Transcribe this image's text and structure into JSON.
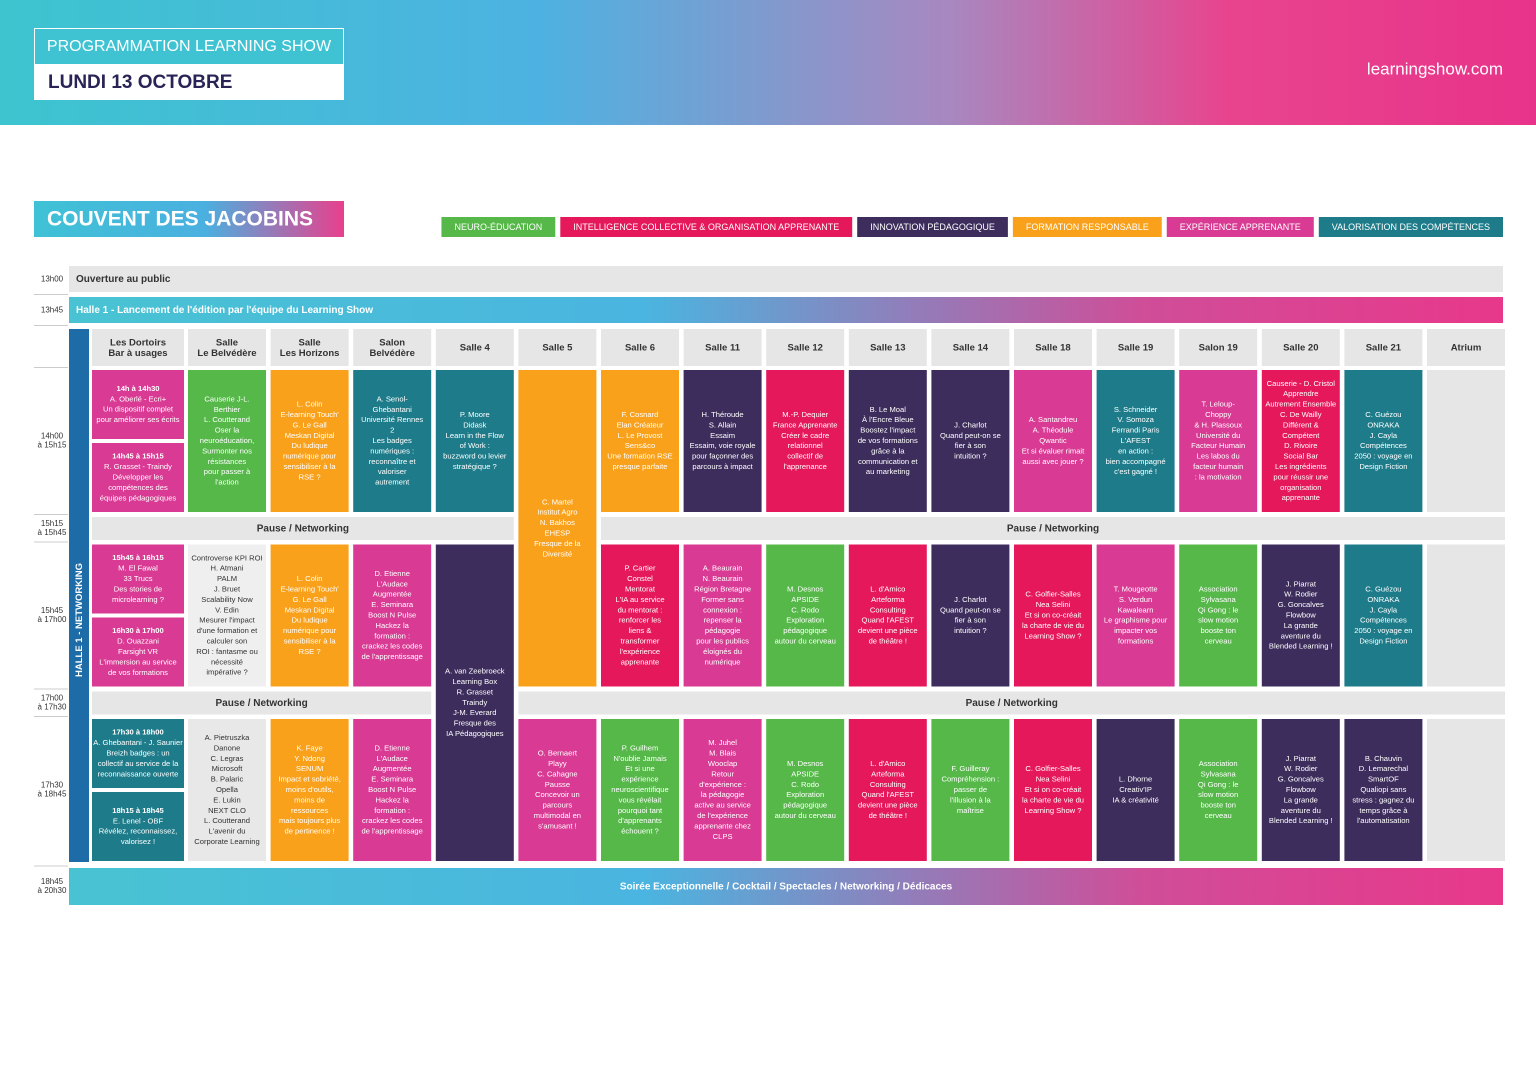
{
  "header": {
    "title": "PROGRAMMATION LEARNING SHOW",
    "date": "LUNDI 13 OCTOBRE",
    "site": "learningshow.com"
  },
  "venue": "COUVENT DES JACOBINS",
  "legend": [
    {
      "label": "NEURO-ÉDUCATION",
      "color": "#55b848"
    },
    {
      "label": "INTELLIGENCE COLLECTIVE & ORGANISATION APPRENANTE",
      "color": "#e5185b"
    },
    {
      "label": "INNOVATION PÉDAGOGIQUE",
      "color": "#3d2d5c"
    },
    {
      "label": "FORMATION RESPONSABLE",
      "color": "#f9a11b"
    },
    {
      "label": "EXPÉRIENCE APPRENANTE",
      "color": "#d93a93"
    },
    {
      "label": "VALORISATION DES COMPÉTENCES",
      "color": "#1e7c8a"
    }
  ],
  "opening": {
    "time": "13h00",
    "label": "Ouverture au public"
  },
  "launch": {
    "time": "13h45",
    "label": "Halle 1 - Lancement de l'édition par l'équipe du Learning Show"
  },
  "networking": "HALLE 1 - NETWORKING",
  "rooms": [
    [
      "Les Dortoirs",
      "Bar à usages"
    ],
    [
      "Salle",
      "Le Belvédère"
    ],
    [
      "Salle",
      "Les Horizons"
    ],
    [
      "Salon",
      "Belvédère"
    ],
    [
      "Salle 4"
    ],
    [
      "Salle 5"
    ],
    [
      "Salle 6"
    ],
    [
      "Salle 11"
    ],
    [
      "Salle 12"
    ],
    [
      "Salle 13"
    ],
    [
      "Salle 14"
    ],
    [
      "Salle 18"
    ],
    [
      "Salle 19"
    ],
    [
      "Salon 19"
    ],
    [
      "Salle 20"
    ],
    [
      "Salle 21"
    ],
    [
      "Atrium"
    ]
  ],
  "slots": [
    {
      "time": [
        "14h00",
        "à 15h15"
      ],
      "cells": [
        {
          "parts": [
            {
              "color": "#d93a93",
              "time": "14h à 14h30",
              "lines": [
                "A. Oberlé - Ecri+",
                "Un dispositif complet",
                "pour améliorer ses écrits"
              ]
            },
            {
              "color": "#d93a93",
              "time": "14h45 à 15h15",
              "lines": [
                "R. Grasset - Traindy",
                "Développer les",
                "compétences des",
                "équipes pédagogiques"
              ]
            }
          ]
        },
        {
          "color": "#55b848",
          "lines": [
            "Causerie J-L.",
            "Berthier",
            "L. Coutterand",
            "Oser la",
            "neuroéducation,",
            "Surmonter nos",
            "résistances",
            "pour passer à",
            "l'action"
          ]
        },
        {
          "color": "#f9a11b",
          "lines": [
            "L. Colin",
            "E-learning Touch'",
            "G. Le Gall",
            "Meskan Digital",
            "Du ludique",
            "numérique pour",
            "sensibiliser à la",
            "RSE ?"
          ]
        },
        {
          "color": "#1e7c8a",
          "lines": [
            "A. Senol-",
            "Ghebantani",
            "Université Rennes",
            "2",
            "Les badges",
            "numériques :",
            "reconnaître et",
            "valoriser",
            "autrement"
          ]
        },
        {
          "color": "#1e7c8a",
          "lines": [
            "P. Moore",
            "Didask",
            "Learn in the Flow",
            "of Work :",
            "buzzword ou levier",
            "stratégique ?"
          ]
        },
        {
          "color": "#f9a11b",
          "rows": 2,
          "lines": [
            "C. Martel",
            "Institut Agro",
            "N. Bakhos",
            "EHESP",
            "Fresque de la",
            "Diversité"
          ]
        },
        {
          "color": "#f9a11b",
          "lines": [
            "F. Cosnard",
            "Elan Créateur",
            "L. Le Provost",
            "Sens&co",
            "Une formation RSE",
            "presque parfaite"
          ]
        },
        {
          "color": "#3d2d5c",
          "lines": [
            "H. Théroude",
            "S. Allain",
            "Essaim",
            "Essaim, voie royale",
            "pour façonner des",
            "parcours à impact"
          ]
        },
        {
          "color": "#e5185b",
          "lines": [
            "M.-P. Dequier",
            "France Apprenante",
            "Créer le cadre",
            "relationnel",
            "collectif de",
            "l'apprenance"
          ]
        },
        {
          "color": "#3d2d5c",
          "lines": [
            "B. Le Moal",
            "À l'Encre Bleue",
            "Boostez l'impact",
            "de vos formations",
            "grâce à la",
            "communication et",
            "au marketing"
          ]
        },
        {
          "color": "#3d2d5c",
          "lines": [
            "J. Charlot",
            "Quand peut-on se",
            "fier à son",
            "intuition ?"
          ]
        },
        {
          "color": "#d93a93",
          "lines": [
            "A. Santandreu",
            "A. Théodule",
            "Qwantic",
            "Et si évaluer rimait",
            "aussi avec jouer ?"
          ]
        },
        {
          "color": "#1e7c8a",
          "lines": [
            "S. Schneider",
            "V. Somoza",
            "Ferrandi Paris",
            "L'AFEST",
            "en action :",
            "bien accompagné",
            "c'est gagné !"
          ]
        },
        {
          "color": "#d93a93",
          "lines": [
            "T. Leloup-",
            "Choppy",
            "& H. Plassoux",
            "Université du",
            "Facteur Humain",
            "Les labos du",
            "facteur humain",
            ": la motivation"
          ]
        },
        {
          "color": "#e5185b",
          "lines": [
            "Causerie - D. Cristol",
            "Apprendre",
            "Autrement Ensemble",
            "C. De Wailly",
            "Différent &",
            "Compétent",
            "D. Rivoire",
            "Social Bar",
            "Les ingrédients",
            "pour réussir une",
            "organisation",
            "apprenante"
          ]
        },
        {
          "color": "#1e7c8a",
          "lines": [
            "C. Guézou",
            "ONRAKA",
            "J. Cayla",
            "Compétences",
            "2050 : voyage en",
            "Design Fiction"
          ]
        },
        {
          "color": "#e6e6e6"
        }
      ]
    },
    {
      "time": [
        "15h15",
        "à 15h45"
      ],
      "label": "Pause / Networking"
    },
    {
      "time": [
        "15h45",
        "à 17h00"
      ],
      "cells": [
        {
          "parts": [
            {
              "color": "#d93a93",
              "time": "15h45 à 16h15",
              "lines": [
                "M. El Fawal",
                "33 Trucs",
                "Des stories de",
                "microlearning ?"
              ]
            },
            {
              "color": "#d93a93",
              "time": "16h30 à 17h00",
              "lines": [
                "D. Ouazzani",
                "Farsight VR",
                "L'immersion au service",
                "de vos formations"
              ]
            }
          ]
        },
        {
          "color": "#efefef",
          "lines": [
            "Controverse KPI ROI",
            "H. Atmani",
            "PALM",
            "J. Bruet",
            "Scalability Now",
            "V. Edin",
            "Mesurer l'impact",
            "d'une formation et",
            "calculer son",
            "ROI : fantasme ou",
            "nécessité",
            "impérative ?"
          ]
        },
        {
          "color": "#f9a11b",
          "lines": [
            "L. Colin",
            "E-learning Touch'",
            "G. Le Gall",
            "Meskan Digital",
            "Du ludique",
            "numérique pour",
            "sensibiliser à la",
            "RSE ?"
          ]
        },
        {
          "color": "#d93a93",
          "lines": [
            "D. Etienne",
            "L'Audace",
            "Augmentée",
            "E. Seminara",
            "Boost N Pulse",
            "Hackez la",
            "formation :",
            "crackez les codes",
            "de l'apprentissage"
          ]
        },
        {
          "color": "#3d2d5c",
          "rows": 2,
          "lines": [
            "A. van Zeebroeck",
            "Learning Box",
            "R. Grasset",
            "Traindy",
            "J-M. Everard",
            "Fresque des",
            "IA Pédagogiques"
          ]
        },
        null,
        {
          "color": "#e5185b",
          "lines": [
            "P. Cartier",
            "Constel",
            "Mentorat",
            "L'IA au service",
            "du mentorat :",
            "renforcer les",
            "liens &",
            "transformer",
            "l'expérience",
            "apprenante"
          ]
        },
        {
          "color": "#d93a93",
          "lines": [
            "A. Beaurain",
            "N. Beaurain",
            "Région Bretagne",
            "Former sans",
            "connexion :",
            "repenser la",
            "pédagogie",
            "pour les publics",
            "éloignés du",
            "numérique"
          ]
        },
        {
          "color": "#55b848",
          "lines": [
            "M. Desnos",
            "APSIDE",
            "C. Rodo",
            "Exploration",
            "pédagogique",
            "autour du cerveau"
          ]
        },
        {
          "color": "#e5185b",
          "lines": [
            "L. d'Amico",
            "Arteforma",
            "Consulting",
            "Quand l'AFEST",
            "devient une pièce",
            "de théâtre !"
          ]
        },
        {
          "color": "#3d2d5c",
          "lines": [
            "J. Charlot",
            "Quand peut-on se",
            "fier à son",
            "intuition ?"
          ]
        },
        {
          "color": "#e5185b",
          "lines": [
            "C. Golfier-Salles",
            "Nea Selini",
            "Et si on co-créait",
            "la charte de vie du",
            "Learning Show ?"
          ]
        },
        {
          "color": "#d93a93",
          "lines": [
            "T. Mougeotte",
            "S. Verdun",
            "Kawalearn",
            "Le graphisme pour",
            "impacter vos",
            "formations"
          ]
        },
        {
          "color": "#55b848",
          "lines": [
            "Association",
            "Sylvasana",
            "Qi Gong : le",
            "slow motion",
            "booste ton",
            "cerveau"
          ]
        },
        {
          "color": "#3d2d5c",
          "lines": [
            "J. Piarrat",
            "W. Rodier",
            "G. Goncalves",
            "Flowbow",
            "La grande",
            "aventure du",
            "Blended Learning !"
          ]
        },
        {
          "color": "#1e7c8a",
          "lines": [
            "C. Guézou",
            "ONRAKA",
            "J. Cayla",
            "Compétences",
            "2050 : voyage en",
            "Design Fiction"
          ]
        },
        {
          "color": "#e6e6e6"
        }
      ]
    },
    {
      "time": [
        "17h00",
        "à 17h30"
      ],
      "label": "Pause / Networking"
    },
    {
      "time": [
        "17h30",
        "à 18h45"
      ],
      "cells": [
        {
          "parts": [
            {
              "color": "#1e7c8a",
              "time": "17h30 à 18h00",
              "lines": [
                "A. Ghebantani - J. Saunier",
                "Breizh badges : un",
                "collectif au service de la",
                "reconnaissance ouverte"
              ]
            },
            {
              "color": "#1e7c8a",
              "time": "18h15 à 18h45",
              "lines": [
                "E. Lenel - OBF",
                "Révélez, reconnaissez,",
                "valorisez !"
              ]
            }
          ]
        },
        {
          "color": "#e8e8e8",
          "lines": [
            "A. Pietruszka",
            "Danone",
            "C. Legras",
            "Microsoft",
            "B. Palaric",
            "Opella",
            "E. Lukin",
            "NEXT CLO",
            "L. Coutterand",
            "L'avenir du",
            "Corporate Learning"
          ]
        },
        {
          "color": "#f9a11b",
          "lines": [
            "K. Faye",
            "Y. Ndong",
            "SENUM",
            "Impact et sobriété,",
            "moins d'outils,",
            "moins de",
            "ressources",
            "mais toujours plus",
            "de pertinence !"
          ]
        },
        {
          "color": "#d93a93",
          "lines": [
            "D. Etienne",
            "L'Audace",
            "Augmentée",
            "E. Seminara",
            "Boost N Pulse",
            "Hackez la",
            "formation :",
            "crackez les codes",
            "de l'apprentissage"
          ]
        },
        null,
        {
          "color": "#d93a93",
          "lines": [
            "O. Bernaert",
            "Playy",
            "C. Cahagne",
            "Pausse",
            "Concevoir un",
            "parcours",
            "multimodal en",
            "s'amusant !"
          ]
        },
        {
          "color": "#55b848",
          "lines": [
            "P. Guilhem",
            "N'oublie Jamais",
            "Et si une",
            "expérience",
            "neuroscientifique",
            "vous révélait",
            "pourquoi tant",
            "d'apprenants",
            "échouent ?"
          ]
        },
        {
          "color": "#d93a93",
          "lines": [
            "M. Juhel",
            "M. Blais",
            "Wooclap",
            "Retour",
            "d'expérience :",
            "la pédagogie",
            "active au service",
            "de l'expérience",
            "apprenante chez",
            "CLPS"
          ]
        },
        {
          "color": "#55b848",
          "lines": [
            "M. Desnos",
            "APSIDE",
            "C. Rodo",
            "Exploration",
            "pédagogique",
            "autour du cerveau"
          ]
        },
        {
          "color": "#e5185b",
          "lines": [
            "L. d'Amico",
            "Arteforma",
            "Consulting",
            "Quand l'AFEST",
            "devient une pièce",
            "de théâtre !"
          ]
        },
        {
          "color": "#55b848",
          "lines": [
            "F. Guilleray",
            "Compréhension :",
            "passer de",
            "l'illusion à la",
            "maîtrise"
          ]
        },
        {
          "color": "#e5185b",
          "lines": [
            "C. Golfier-Salles",
            "Nea Selini",
            "Et si on co-créait",
            "la charte de vie du",
            "Learning Show ?"
          ]
        },
        {
          "color": "#3d2d5c",
          "lines": [
            "L. Dhorne",
            "Creativ'IP",
            "IA & créativité"
          ]
        },
        {
          "color": "#55b848",
          "lines": [
            "Association",
            "Sylvasana",
            "Qi Gong : le",
            "slow motion",
            "booste ton",
            "cerveau"
          ]
        },
        {
          "color": "#3d2d5c",
          "lines": [
            "J. Piarrat",
            "W. Rodier",
            "G. Goncalves",
            "Flowbow",
            "La grande",
            "aventure du",
            "Blended Learning !"
          ]
        },
        {
          "color": "#3d2d5c",
          "lines": [
            "B. Chauvin",
            "D. Lemarechal",
            "SmartOF",
            "Qualiopi sans",
            "stress : gagnez du",
            "temps grâce à",
            "l'automatisation"
          ]
        },
        {
          "color": "#e6e6e6"
        }
      ]
    }
  ],
  "evening": {
    "time": [
      "18h45",
      "à 20h30"
    ],
    "label": "Soirée Exceptionnelle / Cocktail / Spectacles / Networking / Dédicaces"
  }
}
